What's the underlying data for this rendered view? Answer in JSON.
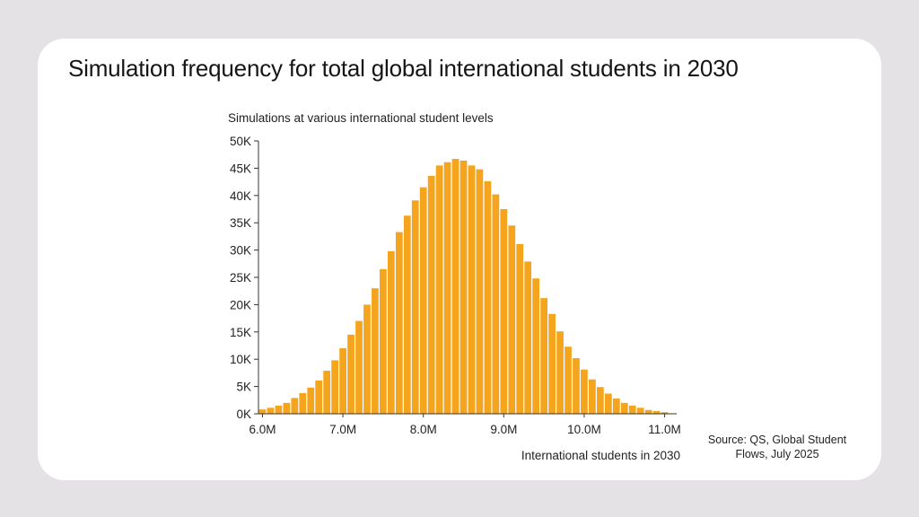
{
  "title": "Simulation frequency for total global international students in 2030",
  "source": "Source: QS, Global Student Flows, July 2025",
  "colors": {
    "bar": "#f5a51d",
    "axis": "#333333",
    "card": "#ffffff",
    "background": "#e4e2e4"
  },
  "chart_data": {
    "type": "bar",
    "ylabel": "Simulations at various international student levels",
    "xlabel": "International students in 2030",
    "ylim": [
      0,
      50000
    ],
    "yticks": [
      {
        "value": 0,
        "label": "0K"
      },
      {
        "value": 5000,
        "label": "5K"
      },
      {
        "value": 10000,
        "label": "10K"
      },
      {
        "value": 15000,
        "label": "15K"
      },
      {
        "value": 20000,
        "label": "20K"
      },
      {
        "value": 25000,
        "label": "25K"
      },
      {
        "value": 30000,
        "label": "30K"
      },
      {
        "value": 35000,
        "label": "35K"
      },
      {
        "value": 40000,
        "label": "40K"
      },
      {
        "value": 45000,
        "label": "45K"
      },
      {
        "value": 50000,
        "label": "50K"
      }
    ],
    "xlim": [
      5950000,
      11150000
    ],
    "xticks": [
      {
        "value": 6000000,
        "label": "6.0M"
      },
      {
        "value": 7000000,
        "label": "7.0M"
      },
      {
        "value": 8000000,
        "label": "8.0M"
      },
      {
        "value": 9000000,
        "label": "9.0M"
      },
      {
        "value": 10000000,
        "label": "10.0M"
      },
      {
        "value": 11000000,
        "label": "11.0M"
      }
    ],
    "bin_width": 100000,
    "x": [
      6000000,
      6100000,
      6200000,
      6300000,
      6400000,
      6500000,
      6600000,
      6700000,
      6800000,
      6900000,
      7000000,
      7100000,
      7200000,
      7300000,
      7400000,
      7500000,
      7600000,
      7700000,
      7800000,
      7900000,
      8000000,
      8100000,
      8200000,
      8300000,
      8400000,
      8500000,
      8600000,
      8700000,
      8800000,
      8900000,
      9000000,
      9100000,
      9200000,
      9300000,
      9400000,
      9500000,
      9600000,
      9700000,
      9800000,
      9900000,
      10000000,
      10100000,
      10200000,
      10300000,
      10400000,
      10500000,
      10600000,
      10700000,
      10800000,
      10900000,
      11000000,
      11100000
    ],
    "values": [
      800,
      1100,
      1500,
      2000,
      2900,
      3800,
      4800,
      6100,
      7900,
      9800,
      12000,
      14500,
      17000,
      20000,
      23000,
      26500,
      29800,
      33300,
      36300,
      39100,
      41500,
      43600,
      45500,
      46100,
      46700,
      46400,
      45500,
      44800,
      42600,
      40200,
      37500,
      34500,
      31100,
      27900,
      24800,
      21200,
      18300,
      15100,
      12300,
      10200,
      8100,
      6300,
      4900,
      3700,
      2800,
      2000,
      1500,
      1100,
      700,
      500,
      300,
      0
    ]
  }
}
